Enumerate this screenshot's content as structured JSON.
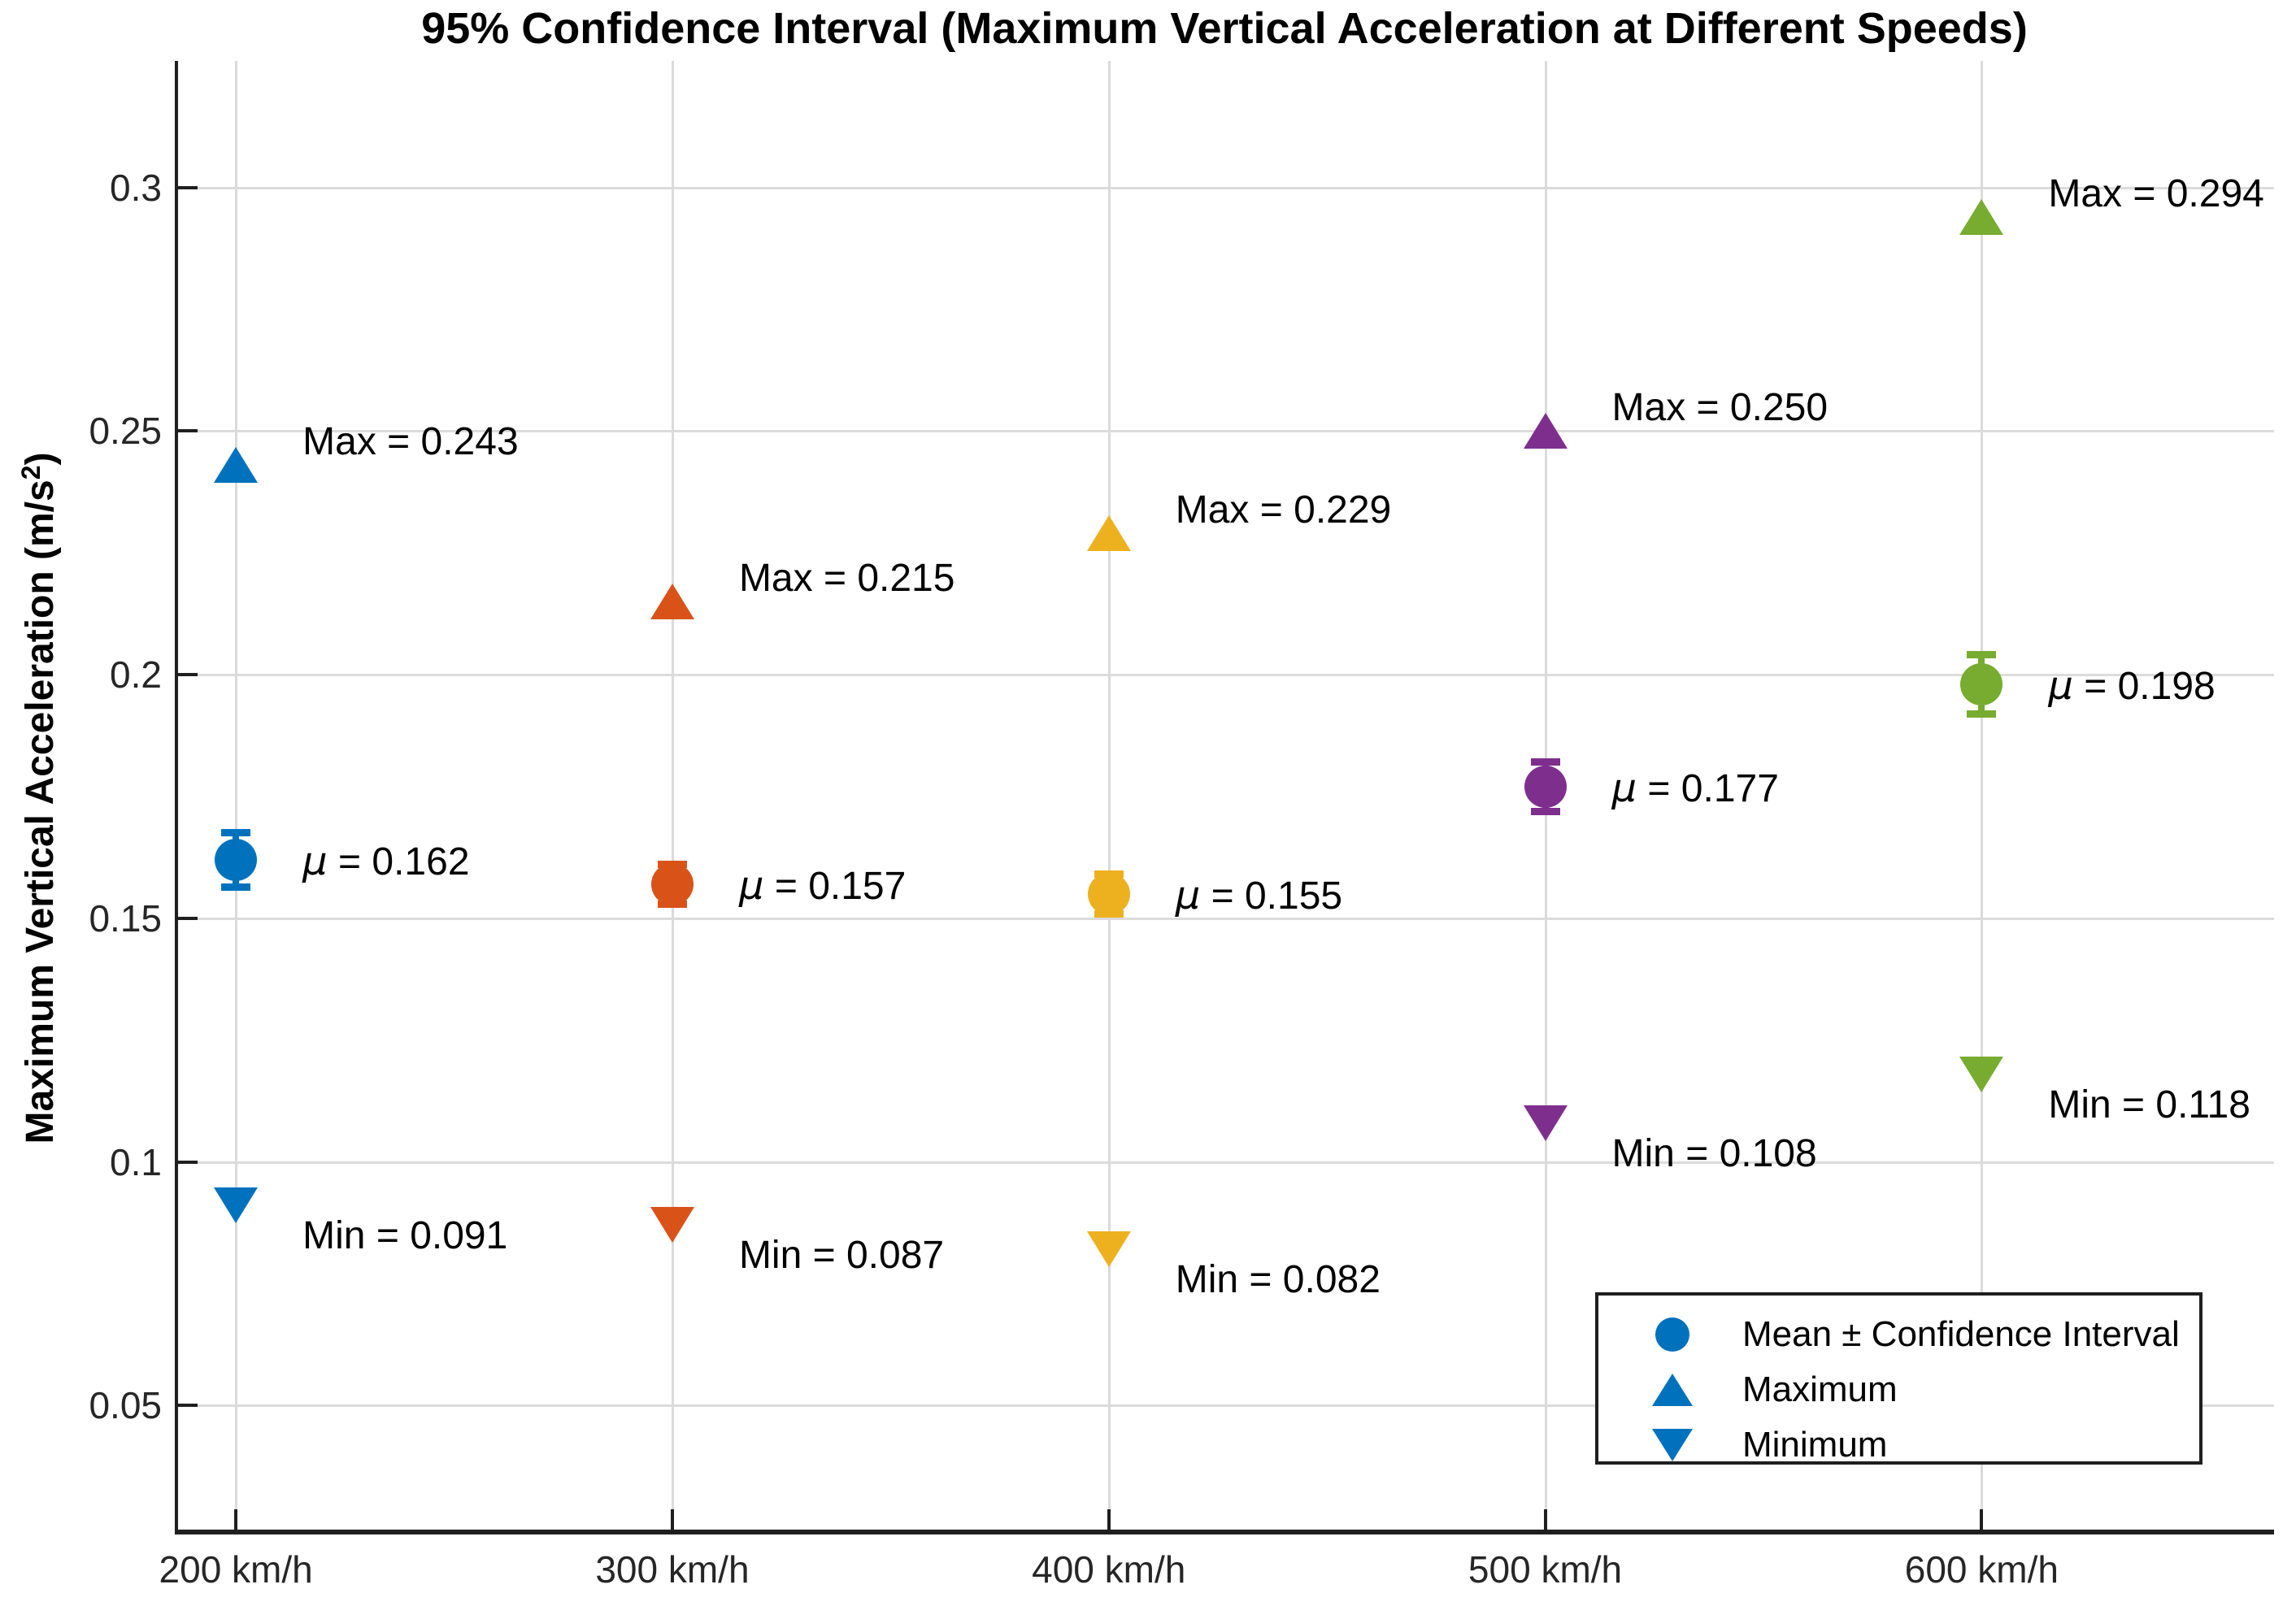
{
  "figure": {
    "title": "95% Confidence Interval (Maximum Vertical Acceleration at Different Speeds)",
    "y_axis_label": {
      "pre": "Maximum Vertical Acceleration (m/s",
      "sup": "2",
      "post": ")"
    }
  },
  "legend": {
    "marker_color": "#0072BD",
    "items": [
      {
        "glyph": "errorbar-circle-icon",
        "label": "Mean ± Confidence Interval"
      },
      {
        "glyph": "triangle-up-icon",
        "label": "Maximum"
      },
      {
        "glyph": "triangle-down-icon",
        "label": "Minimum"
      }
    ]
  },
  "chart_data": {
    "type": "scatter",
    "title": "95% Confidence Interval (Maximum Vertical Acceleration at Different Speeds)",
    "xlabel": "",
    "ylabel": "Maximum Vertical Acceleration (m/s^2)",
    "categories": [
      "200 km/h",
      "300 km/h",
      "400 km/h",
      "500 km/h",
      "600 km/h"
    ],
    "x": [
      1,
      2,
      3,
      4,
      5
    ],
    "xlim": [
      0.86,
      5.67
    ],
    "ylim": [
      0.024,
      0.326
    ],
    "y_ticks": [
      {
        "value": 0.05,
        "label": "0.05"
      },
      {
        "value": 0.1,
        "label": "0.1"
      },
      {
        "value": 0.15,
        "label": "0.15"
      },
      {
        "value": 0.2,
        "label": "0.2"
      },
      {
        "value": 0.25,
        "label": "0.25"
      },
      {
        "value": 0.3,
        "label": "0.3"
      }
    ],
    "grid": true,
    "legend_position": "southeast",
    "series": [
      {
        "category": "200 km/h",
        "color": "#0072BD",
        "mean": 0.162,
        "ci": 0.0055,
        "max": 0.243,
        "min": 0.091,
        "labels": {
          "max": "Max = 0.243",
          "mean": "μ = 0.162",
          "min": "Min = 0.091"
        }
      },
      {
        "category": "300 km/h",
        "color": "#D95319",
        "mean": 0.157,
        "ci": 0.004,
        "max": 0.215,
        "min": 0.087,
        "labels": {
          "max": "Max = 0.215",
          "mean": "μ = 0.157",
          "min": "Min = 0.087"
        }
      },
      {
        "category": "400 km/h",
        "color": "#EDB120",
        "mean": 0.155,
        "ci": 0.004,
        "max": 0.229,
        "min": 0.082,
        "labels": {
          "max": "Max = 0.229",
          "mean": "μ = 0.155",
          "min": "Min = 0.082"
        }
      },
      {
        "category": "500 km/h",
        "color": "#7E2F8E",
        "mean": 0.177,
        "ci": 0.005,
        "max": 0.25,
        "min": 0.108,
        "labels": {
          "max": "Max = 0.250",
          "mean": "μ = 0.177",
          "min": "Min = 0.108"
        }
      },
      {
        "category": "600 km/h",
        "color": "#77AC30",
        "mean": 0.198,
        "ci": 0.006,
        "max": 0.294,
        "min": 0.118,
        "labels": {
          "max": "Max = 0.294",
          "mean": "μ = 0.198",
          "min": "Min = 0.118"
        }
      }
    ],
    "colors": {
      "grid": "#dbdbdb",
      "axis": "#1f1f1f",
      "tick_label": "#262626",
      "annotation": "#000000"
    }
  }
}
